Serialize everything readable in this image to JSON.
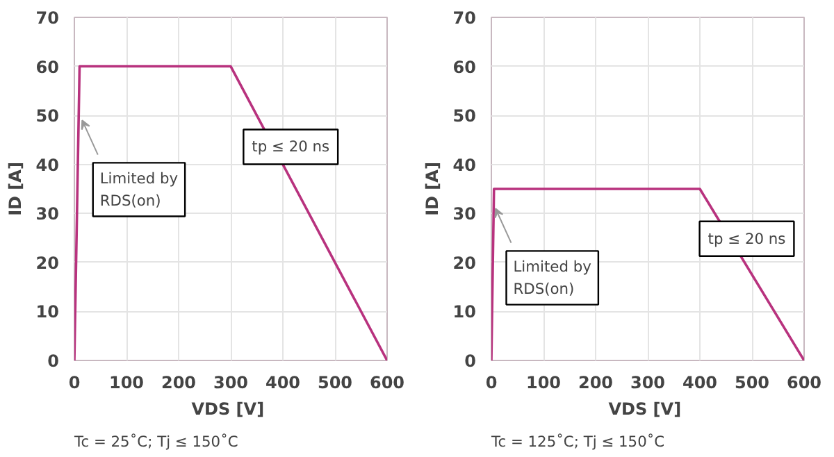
{
  "chart_data": [
    {
      "type": "line",
      "x": [
        0,
        10,
        300,
        600
      ],
      "values": [
        0,
        60,
        60,
        0
      ],
      "color": "#b8327e",
      "xlim": [
        0,
        600
      ],
      "ylim": [
        0,
        70
      ],
      "xticks": [
        0,
        100,
        200,
        300,
        400,
        500,
        600
      ],
      "yticks": [
        0,
        10,
        20,
        30,
        40,
        50,
        60,
        70
      ],
      "grid": true,
      "xlabel": "VDS  [V]",
      "ylabel": "ID [A]",
      "annotations": [
        {
          "text": "Limited by\nRDS(on)",
          "x": 15,
          "y": 49
        },
        "tp ≤ 20 ns",
        "Tc = 25˚C; Tj ≤ 150˚C"
      ]
    },
    {
      "type": "line",
      "x": [
        0,
        5,
        400,
        600
      ],
      "values": [
        0,
        35,
        35,
        0
      ],
      "color": "#b8327e",
      "xlim": [
        0,
        600
      ],
      "ylim": [
        0,
        70
      ],
      "xticks": [
        0,
        100,
        200,
        300,
        400,
        500,
        600
      ],
      "yticks": [
        0,
        10,
        20,
        30,
        40,
        50,
        60,
        70
      ],
      "grid": true,
      "xlabel": "VDS  [V]",
      "ylabel": "ID [A]",
      "annotations": [
        {
          "text": "Limited by\nRDS(on)",
          "x": 8,
          "y": 31
        },
        "tp ≤ 20 ns",
        "Tc = 125˚C; Tj ≤ 150˚C"
      ]
    }
  ]
}
